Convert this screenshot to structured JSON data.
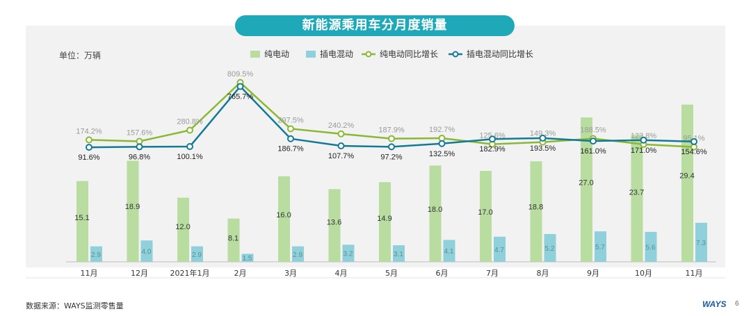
{
  "title": "新能源乘用车分月度销量",
  "unit": "单位：万辆",
  "source": "数据来源：WAYS监测零售量",
  "brand": "WAYS",
  "page_number": "6",
  "colors": {
    "bev_bar": "#b9dca0",
    "phev_bar": "#8fd0db",
    "bev_line": "#8ab832",
    "phev_line": "#137a96",
    "panel_bg": "#f2f2f2",
    "title_bg": "#1ea8b8"
  },
  "chart_data": {
    "type": "bar+line",
    "categories": [
      "11月",
      "12月",
      "2021年1月",
      "2月",
      "3月",
      "4月",
      "5月",
      "6月",
      "7月",
      "8月",
      "9月",
      "10月",
      "11月"
    ],
    "legend": {
      "placement": "top-center"
    },
    "series": [
      {
        "name": "纯电动",
        "type": "bar",
        "values": [
          15.1,
          18.9,
          12.0,
          8.1,
          16.0,
          13.6,
          14.9,
          18.0,
          17.0,
          18.8,
          27.0,
          23.7,
          29.4
        ],
        "labels": [
          "15.1",
          "18.9",
          "12.0",
          "8.1",
          "16.0",
          "13.6",
          "14.9",
          "18.0",
          "17.0",
          "18.8",
          "27.0",
          "23.7",
          "29.4"
        ]
      },
      {
        "name": "插电混动",
        "type": "bar",
        "values": [
          2.9,
          4.0,
          2.9,
          1.5,
          2.9,
          3.2,
          3.1,
          4.1,
          4.7,
          5.2,
          5.7,
          5.6,
          7.3
        ],
        "labels": [
          "2.9",
          "4.0",
          "2.9",
          "1.5",
          "2.9",
          "3.2",
          "3.1",
          "4.1",
          "4.7",
          "5.2",
          "5.7",
          "5.6",
          "7.3"
        ]
      },
      {
        "name": "纯电动同比增长",
        "type": "line",
        "values": [
          174.2,
          157.6,
          280.8,
          809.5,
          297.5,
          240.2,
          187.9,
          192.7,
          125.6,
          149.3,
          188.5,
          123.8,
          95.1
        ],
        "labels": [
          "174.2%",
          "157.6%",
          "280.8%",
          "809.5%",
          "297.5%",
          "240.2%",
          "187.9%",
          "192.7%",
          "125.6%",
          "149.3%",
          "188.5%",
          "123.8%",
          "95.1%"
        ]
      },
      {
        "name": "插电混动同比增长",
        "type": "line",
        "values": [
          91.6,
          96.8,
          100.1,
          765.7,
          186.7,
          107.7,
          97.2,
          132.5,
          182.9,
          193.5,
          161.0,
          171.0,
          154.6
        ],
        "labels": [
          "91.6%",
          "96.8%",
          "100.1%",
          "765.7%",
          "186.7%",
          "107.7%",
          "97.2%",
          "132.5%",
          "182.9%",
          "193.5%",
          "161.0%",
          "171.0%",
          "154.6%"
        ]
      }
    ]
  }
}
